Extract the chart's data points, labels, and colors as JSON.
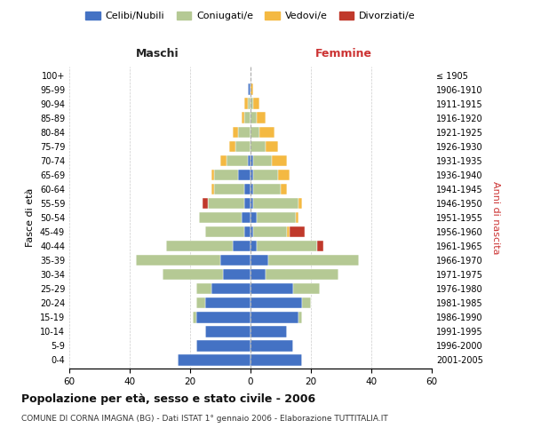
{
  "age_groups": [
    "0-4",
    "5-9",
    "10-14",
    "15-19",
    "20-24",
    "25-29",
    "30-34",
    "35-39",
    "40-44",
    "45-49",
    "50-54",
    "55-59",
    "60-64",
    "65-69",
    "70-74",
    "75-79",
    "80-84",
    "85-89",
    "90-94",
    "95-99",
    "100+"
  ],
  "birth_years": [
    "2001-2005",
    "1996-2000",
    "1991-1995",
    "1986-1990",
    "1981-1985",
    "1976-1980",
    "1971-1975",
    "1966-1970",
    "1961-1965",
    "1956-1960",
    "1951-1955",
    "1946-1950",
    "1941-1945",
    "1936-1940",
    "1931-1935",
    "1926-1930",
    "1921-1925",
    "1916-1920",
    "1911-1915",
    "1906-1910",
    "≤ 1905"
  ],
  "males": {
    "celibi": [
      24,
      18,
      15,
      18,
      15,
      13,
      9,
      10,
      6,
      2,
      3,
      2,
      2,
      4,
      1,
      0,
      0,
      0,
      0,
      1,
      0
    ],
    "coniugati": [
      0,
      0,
      0,
      1,
      3,
      5,
      20,
      28,
      22,
      13,
      14,
      12,
      10,
      8,
      7,
      5,
      4,
      2,
      1,
      0,
      0
    ],
    "vedovi": [
      0,
      0,
      0,
      0,
      0,
      0,
      0,
      0,
      0,
      0,
      0,
      0,
      1,
      1,
      2,
      2,
      2,
      1,
      1,
      0,
      0
    ],
    "divorziati": [
      0,
      0,
      0,
      0,
      0,
      0,
      0,
      0,
      0,
      0,
      0,
      2,
      0,
      0,
      0,
      0,
      0,
      0,
      0,
      0,
      0
    ]
  },
  "females": {
    "nubili": [
      17,
      14,
      12,
      16,
      17,
      14,
      5,
      6,
      2,
      1,
      2,
      1,
      1,
      1,
      1,
      0,
      0,
      0,
      0,
      0,
      0
    ],
    "coniugate": [
      0,
      0,
      0,
      1,
      3,
      9,
      24,
      30,
      20,
      11,
      13,
      15,
      9,
      8,
      6,
      5,
      3,
      2,
      1,
      0,
      0
    ],
    "vedove": [
      0,
      0,
      0,
      0,
      0,
      0,
      0,
      0,
      0,
      1,
      1,
      1,
      2,
      4,
      5,
      4,
      5,
      3,
      2,
      1,
      0
    ],
    "divorziate": [
      0,
      0,
      0,
      0,
      0,
      0,
      0,
      0,
      2,
      5,
      0,
      0,
      0,
      0,
      0,
      0,
      0,
      0,
      0,
      0,
      0
    ]
  },
  "colors": {
    "celibi": "#4472c4",
    "coniugati": "#b5c994",
    "vedovi": "#f4b942",
    "divorziati": "#c0392b"
  },
  "xlim": 60,
  "title": "Popolazione per età, sesso e stato civile - 2006",
  "subtitle": "COMUNE DI CORNA IMAGNA (BG) - Dati ISTAT 1° gennaio 2006 - Elaborazione TUTTITALIA.IT",
  "xlabel_left": "Maschi",
  "xlabel_right": "Femmine",
  "ylabel_left": "Fasce di età",
  "ylabel_right": "Anni di nascita",
  "legend_labels": [
    "Celibi/Nubili",
    "Coniugati/e",
    "Vedovi/e",
    "Divorziati/e"
  ]
}
